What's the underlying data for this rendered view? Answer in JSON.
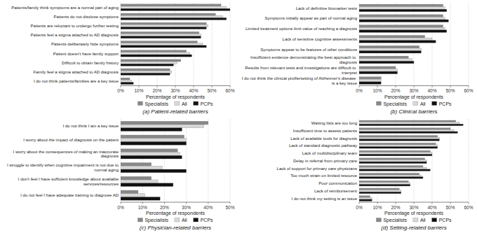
{
  "chart_data": [
    {
      "type": "bar",
      "orientation": "horizontal",
      "title": "(a)  Patient-related barriers",
      "xlabel": "Percentage of respondents",
      "categories": [
        "Patients/family think symptoms are a normal part of aging",
        "Patients do not disclose symptoms",
        "Patients are reluctant to undergo further testing",
        "Patients feel a stigma attached to AD diagnosis",
        "Patients deliberately hide symptoms",
        "Patient doesn't have family support",
        "Difficult to obtain family history",
        "Family feel a stigma attached to AD diagnosis",
        "I do not think patients/families are a key issue"
      ],
      "series": [
        {
          "name": "Specialists",
          "color": "#888888",
          "values": [
            55,
            52,
            47,
            43,
            42,
            36,
            33,
            27,
            5
          ]
        },
        {
          "name": "All",
          "color": "#d8d8d8",
          "values": [
            58,
            56,
            48,
            44,
            45,
            38,
            31,
            28,
            6
          ]
        },
        {
          "name": "PCPs",
          "color": "#111111",
          "values": [
            60,
            58,
            47,
            44,
            47,
            39,
            29,
            27,
            7
          ]
        }
      ],
      "xlim": [
        0,
        60
      ],
      "xticks": [
        {
          "value": 0,
          "label": "0%"
        },
        {
          "value": 10,
          "label": "10%"
        },
        {
          "value": 20,
          "label": "20%"
        },
        {
          "value": 30,
          "label": "30%"
        },
        {
          "value": 40,
          "label": "40%"
        },
        {
          "value": 50,
          "label": "50%"
        },
        {
          "value": 60,
          "label": "60%"
        }
      ],
      "grid": true,
      "legend": "bottom"
    },
    {
      "type": "bar",
      "orientation": "horizontal",
      "title": "(b)  Clinical barriers",
      "xlabel": "Percentage of respondents",
      "categories": [
        "Lack of definitive biomarker tests",
        "Symptoms initially appear as part of normal aging",
        "Limited treatment options limit value of reaching a diagnosis",
        "Lack of sensitive cognitive assessments",
        "Symptoms appear to be features of other conditions",
        "Insufficient evidence demonstrating the best approach to diagnosis",
        "Results from relevant tests and investigations are difficult to interpret",
        "I do not think the clinical profile/setting of Alzheimer's disease is a key issue"
      ],
      "series": [
        {
          "name": "Specialists",
          "color": "#888888",
          "values": [
            46,
            46,
            46,
            36,
            33,
            27,
            20,
            12
          ]
        },
        {
          "name": "All",
          "color": "#d8d8d8",
          "values": [
            47,
            47,
            47,
            40,
            34,
            29,
            21,
            12
          ]
        },
        {
          "name": "PCPs",
          "color": "#111111",
          "values": [
            48,
            49,
            48,
            42,
            34,
            30,
            21,
            12
          ]
        }
      ],
      "xlim": [
        0,
        60
      ],
      "xticks": [
        {
          "value": 0,
          "label": "0%"
        },
        {
          "value": 10,
          "label": "10%"
        },
        {
          "value": 20,
          "label": "20%"
        },
        {
          "value": 30,
          "label": "30%"
        },
        {
          "value": 40,
          "label": "40%"
        },
        {
          "value": 50,
          "label": "50%"
        },
        {
          "value": 60,
          "label": "60%"
        }
      ],
      "grid": true,
      "legend": "bottom"
    },
    {
      "type": "bar",
      "orientation": "horizontal",
      "title": "(c)  Physician-related barriers",
      "xlabel": "Percentage of respondents",
      "categories": [
        "I do not think I am a key issue",
        "I worry about the impact of diagnosis on the patient",
        "I worry about the consequences of making an inaccurate\ndiagnosis",
        "I struggle to identify when cognitive impairment is not due to\nnormal aging",
        "I don't feel I have sufficient knowledge about available\nservices/resources",
        "I do not feel I have adequate training to diagnose AD"
      ],
      "series": [
        {
          "name": "Specialists",
          "color": "#888888",
          "values": [
            40,
            29,
            26,
            14,
            14,
            8
          ]
        },
        {
          "name": "All",
          "color": "#d8d8d8",
          "values": [
            38,
            30,
            27,
            19,
            17,
            11
          ]
        },
        {
          "name": "PCPs",
          "color": "#111111",
          "values": [
            28,
            30,
            28,
            30,
            24,
            18
          ]
        }
      ],
      "xlim": [
        0,
        50
      ],
      "xticks": [
        {
          "value": 0,
          "label": "0%"
        },
        {
          "value": 10,
          "label": "10%"
        },
        {
          "value": 20,
          "label": "20%"
        },
        {
          "value": 30,
          "label": "30%"
        },
        {
          "value": 40,
          "label": "40%"
        },
        {
          "value": 50,
          "label": "50%"
        }
      ],
      "grid": true,
      "legend": "bottom"
    },
    {
      "type": "bar",
      "orientation": "horizontal",
      "title": "(d)  Setting-related barriers",
      "xlabel": "Percentage of respondents",
      "categories": [
        "Waiting lists are too long",
        "Insufficient time to assess patients",
        "Lack of available tools for diagnosis",
        "Lack of standard diagnostic pathway",
        "Lack of multidisciplinary team",
        "Delay in referral from primary care",
        "Lack of support for primary care physicians",
        "Too much strain on limited resource",
        "Poor communication",
        "Lack of reimbursement",
        "I do not think my setting is an issue"
      ],
      "series": [
        {
          "name": "Specialists",
          "color": "#888888",
          "values": [
            53,
            50,
            43,
            42,
            39,
            36,
            35,
            33,
            27,
            22,
            6
          ]
        },
        {
          "name": "All",
          "color": "#d8d8d8",
          "values": [
            55,
            52,
            44,
            43,
            40,
            37,
            37,
            34,
            28,
            23,
            7
          ]
        },
        {
          "name": "PCPs",
          "color": "#111111",
          "values": [
            57,
            54,
            44,
            43,
            40,
            37,
            39,
            35,
            28,
            23,
            7
          ]
        }
      ],
      "xlim": [
        0,
        60
      ],
      "xticks": [
        {
          "value": 0,
          "label": "0%"
        },
        {
          "value": 10,
          "label": "10%"
        },
        {
          "value": 20,
          "label": "20%"
        },
        {
          "value": 30,
          "label": "30%"
        },
        {
          "value": 40,
          "label": "40%"
        },
        {
          "value": 50,
          "label": "50%"
        },
        {
          "value": 60,
          "label": "60%"
        }
      ],
      "grid": true,
      "legend": "bottom"
    }
  ]
}
